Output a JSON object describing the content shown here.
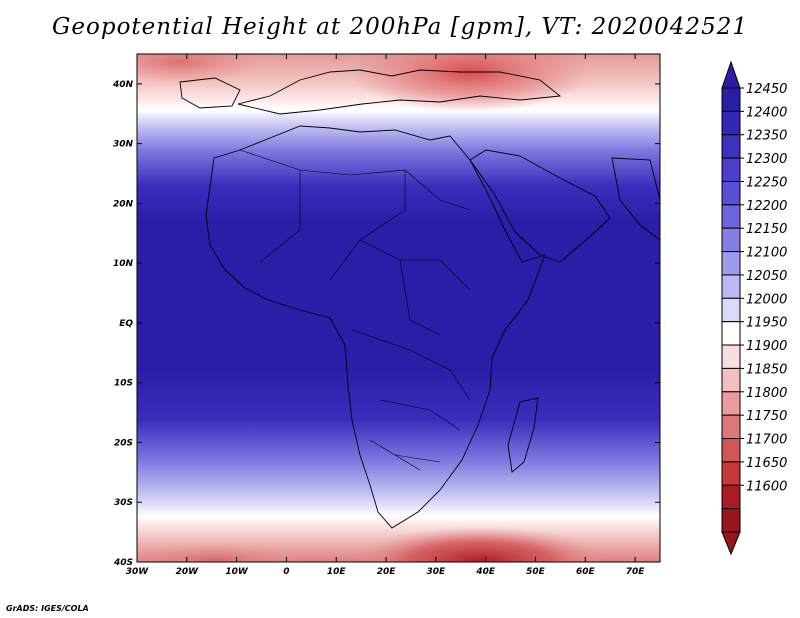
{
  "title": "Geopotential Height at 200hPa [gpm], VT: 2020042521",
  "credit": "GrADS: IGES/COLA",
  "map": {
    "lon_labels": [
      "30W",
      "20W",
      "10W",
      "0",
      "10E",
      "20E",
      "30E",
      "40E",
      "50E",
      "60E",
      "70E"
    ],
    "lat_labels": [
      "40N",
      "30N",
      "20N",
      "10N",
      "EQ",
      "10S",
      "20S",
      "30S",
      "40S"
    ],
    "lon_range": [
      -30,
      75
    ],
    "lat_range": [
      -40,
      45
    ]
  },
  "colorbar": {
    "levels": [
      12450,
      12400,
      12350,
      12300,
      12250,
      12200,
      12150,
      12100,
      12050,
      12000,
      11950,
      11900,
      11850,
      11800,
      11750,
      11700,
      11650,
      11600
    ],
    "labels": [
      "12450",
      "12400",
      "12350",
      "12300",
      "12250",
      "12200",
      "12150",
      "12100",
      "12050",
      "12000",
      "11950",
      "11900",
      "11850",
      "11800",
      "11750",
      "11700",
      "11650",
      "11600"
    ],
    "colors": [
      "#2a1ea8",
      "#3427b5",
      "#3f31c0",
      "#4b3ecb",
      "#5a4fd4",
      "#6d63dc",
      "#8480e3",
      "#9d9beb",
      "#bab9f2",
      "#d9d9f9",
      "#ffffff",
      "#fadede",
      "#f2c0c0",
      "#e89c9c",
      "#dd7878",
      "#d25656",
      "#c53838",
      "#a71d23",
      "#9a141c"
    ],
    "top_color": "#2a1ea8",
    "bottom_color": "#9a141c"
  },
  "colors": {
    "deep": "#2a1ea8",
    "ocean": "#4a3ed0"
  }
}
